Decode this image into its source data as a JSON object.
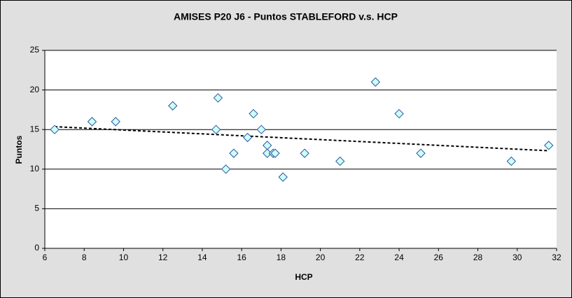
{
  "chart_data": {
    "type": "scatter",
    "title": "AMISES P20 J6 - Puntos STABLEFORD v.s. HCP",
    "x_label": "HCP",
    "y_label": "Puntos",
    "x": [
      6.5,
      8.4,
      9.6,
      12.5,
      14.8,
      14.7,
      15.2,
      15.6,
      16.6,
      16.3,
      17.0,
      17.3,
      17.3,
      17.6,
      17.7,
      18.1,
      19.2,
      21.0,
      22.8,
      24.0,
      25.1,
      29.7,
      31.6
    ],
    "values": [
      15,
      16,
      16,
      18,
      19,
      15,
      10,
      12,
      17,
      14,
      15,
      13,
      12,
      12,
      12,
      9,
      12,
      11,
      21,
      17,
      12,
      11,
      13
    ],
    "marker_color": "#ccffff",
    "marker_edge": "#2f5597",
    "trendline": "linear",
    "xlim": [
      6,
      32
    ],
    "xticks": [
      6,
      8,
      10,
      12,
      14,
      16,
      18,
      20,
      22,
      24,
      26,
      28,
      30,
      32
    ],
    "ylim": [
      0,
      25
    ],
    "yticks": [
      0,
      5,
      10,
      15,
      20,
      25
    ],
    "grid": true
  }
}
